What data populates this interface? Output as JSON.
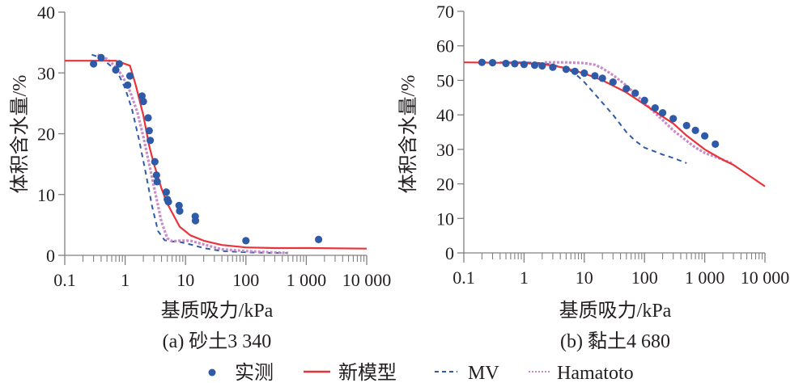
{
  "legend": [
    {
      "label": "实测",
      "kind": "marker",
      "color": "#2e5aa8"
    },
    {
      "label": "新模型",
      "kind": "solid",
      "color": "#e8333a"
    },
    {
      "label": "MV",
      "kind": "dashed",
      "color": "#2e5aa8"
    },
    {
      "label": "Hamatoto",
      "kind": "dotted",
      "color": "#c98ac8"
    }
  ],
  "chart_data": [
    {
      "type": "line",
      "title": "(a) 砂土3 340",
      "xlabel": "基质吸力/kPa",
      "ylabel": "体积含水量/%",
      "xscale": "log",
      "xlim": [
        0.1,
        10000
      ],
      "ylim": [
        0,
        40
      ],
      "xticks": [
        0.1,
        1,
        10,
        100,
        1000,
        10000
      ],
      "xtick_labels": [
        "0.1",
        "1",
        "10",
        "100",
        "1 000",
        "10 000"
      ],
      "yticks": [
        0,
        10,
        20,
        30,
        40
      ],
      "ytick_labels": [
        "0",
        "10",
        "20",
        "30",
        "40"
      ],
      "grid": false,
      "legend_position": "bottom",
      "series": [
        {
          "name": "实测",
          "kind": "scatter",
          "x": [
            0.3,
            0.4,
            0.7,
            0.8,
            1.1,
            1.2,
            1.9,
            2.0,
            2.4,
            2.5,
            2.6,
            3.1,
            3.3,
            3.4,
            4.8,
            5.0,
            5.2,
            7.8,
            8.0,
            14.5,
            14.6,
            100,
            1600
          ],
          "y": [
            31.5,
            32.5,
            30.5,
            31.5,
            28.0,
            29.5,
            26.2,
            25.3,
            22.6,
            20.5,
            18.9,
            15.4,
            13.2,
            12.1,
            10.4,
            9.2,
            8.8,
            8.2,
            7.3,
            6.4,
            5.7,
            2.4,
            2.6
          ]
        },
        {
          "name": "新模型",
          "kind": "solid",
          "x": [
            0.1,
            0.7,
            1.2,
            1.5,
            2.0,
            2.5,
            3.0,
            4.0,
            5.0,
            8.0,
            12,
            20,
            40,
            100,
            300,
            1000,
            10000
          ],
          "y": [
            32.0,
            32.0,
            31.2,
            28.0,
            23.0,
            18.0,
            15.0,
            11.0,
            8.5,
            4.7,
            3.3,
            2.4,
            1.7,
            1.3,
            1.2,
            1.2,
            1.1
          ]
        },
        {
          "name": "MV",
          "kind": "dashed",
          "x": [
            0.28,
            0.4,
            0.6,
            0.8,
            1.0,
            1.3,
            1.7,
            2.2,
            2.8,
            3.5,
            4.5,
            5.5,
            8,
            12,
            20,
            40,
            100,
            250,
            500
          ],
          "y": [
            33.0,
            32.5,
            31.0,
            29.5,
            27.5,
            24.0,
            19.0,
            13.5,
            8.0,
            4.0,
            2.5,
            2.3,
            2.2,
            1.8,
            1.2,
            0.7,
            0.5,
            0.4,
            0.4
          ]
        },
        {
          "name": "Hamatoto",
          "kind": "dotted",
          "x": [
            0.35,
            0.5,
            0.7,
            0.9,
            1.2,
            1.6,
            2.0,
            2.5,
            3.2,
            4.0,
            5.0,
            6.0,
            8,
            12,
            20,
            40,
            100,
            250,
            500
          ],
          "y": [
            33.0,
            32.3,
            31.0,
            29.5,
            27.0,
            23.5,
            19.5,
            15.0,
            10.0,
            5.5,
            2.8,
            2.3,
            2.4,
            2.4,
            1.8,
            1.0,
            0.7,
            0.5,
            0.4
          ]
        }
      ]
    },
    {
      "type": "line",
      "title": "(b) 黏土4 680",
      "xlabel": "基质吸力/kPa",
      "ylabel": "体积含水量/%",
      "xscale": "log",
      "xlim": [
        0.1,
        10000
      ],
      "ylim": [
        0,
        70
      ],
      "xticks": [
        0.1,
        1,
        10,
        100,
        1000,
        10000
      ],
      "xtick_labels": [
        "0.1",
        "1",
        "10",
        "100",
        "1 000",
        "10 000"
      ],
      "yticks": [
        0,
        10,
        20,
        30,
        40,
        50,
        60,
        70
      ],
      "ytick_labels": [
        "0",
        "10",
        "20",
        "30",
        "40",
        "50",
        "60",
        "70"
      ],
      "grid": false,
      "legend_position": "bottom",
      "series": [
        {
          "name": "实测",
          "kind": "scatter",
          "x": [
            0.2,
            0.3,
            0.5,
            0.7,
            1.0,
            1.5,
            2.0,
            3.0,
            5.0,
            7.0,
            10,
            15,
            20,
            30,
            50,
            70,
            100,
            150,
            200,
            300,
            500,
            700,
            1000,
            1500
          ],
          "y": [
            55.2,
            55.1,
            54.9,
            54.8,
            54.6,
            54.4,
            54.2,
            53.8,
            53.2,
            52.6,
            52.1,
            51.3,
            50.6,
            49.5,
            47.6,
            46.3,
            44.2,
            42.0,
            40.6,
            38.9,
            36.9,
            35.5,
            33.9,
            31.5
          ]
        },
        {
          "name": "新模型",
          "kind": "solid",
          "x": [
            0.1,
            1,
            2,
            3,
            5,
            10,
            20,
            50,
            100,
            200,
            300,
            500,
            1000,
            2000,
            3000,
            10000
          ],
          "y": [
            55.2,
            55.0,
            54.7,
            54.3,
            53.5,
            52.0,
            50.0,
            46.5,
            43.0,
            39.5,
            37.5,
            34.0,
            30.0,
            27.0,
            25.5,
            19.3
          ]
        },
        {
          "name": "MV",
          "kind": "dashed",
          "x": [
            0.2,
            1,
            2,
            3,
            5,
            7,
            10,
            15,
            20,
            30,
            50,
            70,
            100,
            200,
            300,
            500
          ],
          "y": [
            55.2,
            55.2,
            55.0,
            54.5,
            53.5,
            52.0,
            49.5,
            46.0,
            43.5,
            40.0,
            35.0,
            32.5,
            30.5,
            28.5,
            27.5,
            26.0
          ]
        },
        {
          "name": "Hamatoto",
          "kind": "dotted",
          "x": [
            2.2,
            5,
            10,
            15,
            20,
            30,
            50,
            70,
            100,
            150,
            200,
            300,
            500,
            700,
            1000,
            2000,
            3000
          ],
          "y": [
            55.2,
            55.2,
            55.0,
            54.5,
            53.5,
            51.5,
            48.5,
            46.0,
            43.5,
            40.5,
            38.5,
            35.5,
            32.5,
            30.5,
            29.0,
            27.0,
            25.8
          ]
        }
      ]
    }
  ]
}
